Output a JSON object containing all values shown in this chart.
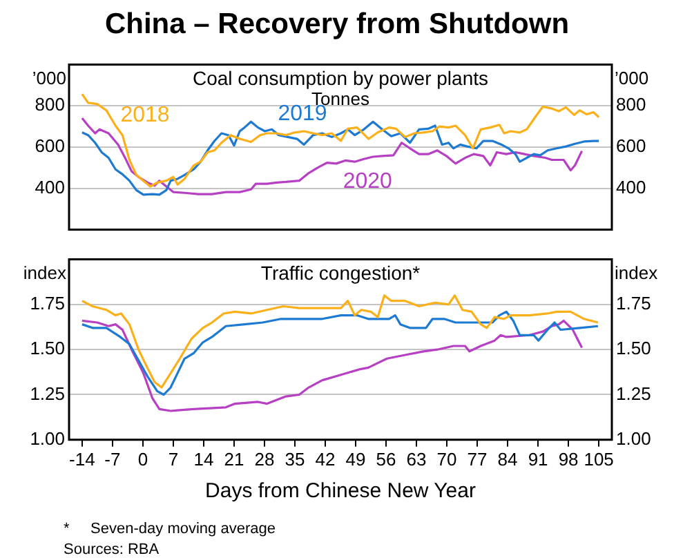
{
  "chart_data": [
    {
      "type": "other",
      "title": "China – Recovery from Shutdown"
    },
    {
      "type": "line",
      "title": "Coal consumption by power plants",
      "subtitle": "Tonnes",
      "ylabel": "’000",
      "y2label": "’000",
      "xlim": [
        -17,
        108
      ],
      "ylim": [
        200,
        1000
      ],
      "yticks": [
        400,
        600,
        800
      ],
      "y2lim": [
        200,
        1000
      ],
      "y2ticks": [
        400,
        600,
        800
      ],
      "grid": "y",
      "tick_labels": "y",
      "series": [
        {
          "name": "2018",
          "color": "#fbb01a",
          "x": [
            -14,
            -12.6,
            -10.5,
            -8.4,
            -6.3,
            -4.7,
            -3.1,
            -1.5,
            0.1,
            1.7,
            3.3,
            5.4,
            7,
            8,
            9.6,
            11.7,
            13.3,
            14.9,
            16.5,
            18.1,
            20.2,
            22.3,
            24.9,
            27,
            28.6,
            30.8,
            32.9,
            35,
            37.1,
            39.2,
            41.3,
            43.5,
            45.6,
            47.2,
            49.3,
            52,
            54.1,
            56.7,
            58.3,
            60.4,
            62.5,
            64.6,
            66.7,
            68.3,
            70.4,
            72,
            74.2,
            76,
            77.8,
            80,
            82.1,
            83.2,
            84.7,
            86.8,
            88.4,
            90.5,
            92.1,
            94.2,
            95.8,
            97.4,
            99.3,
            100.6,
            102.2,
            103.8,
            105
          ],
          "values": [
            857,
            815,
            809,
            778,
            704,
            658,
            538,
            465,
            437,
            409,
            428,
            437,
            455,
            418,
            446,
            511,
            529,
            575,
            584,
            621,
            658,
            640,
            625,
            658,
            667,
            667,
            658,
            671,
            677,
            667,
            658,
            667,
            630,
            689,
            695,
            640,
            671,
            695,
            689,
            649,
            667,
            671,
            677,
            700,
            695,
            704,
            658,
            594,
            686,
            695,
            708,
            667,
            677,
            671,
            686,
            750,
            796,
            787,
            774,
            793,
            756,
            778,
            759,
            769,
            745
          ]
        },
        {
          "name": "2019",
          "color": "#1c7ad2",
          "x": [
            -14,
            -12.6,
            -11,
            -9.5,
            -7.9,
            -6.3,
            -4.7,
            -3.1,
            -1.5,
            0.1,
            2.2,
            3.8,
            5.4,
            6.4,
            8,
            9.6,
            11.7,
            13.3,
            14.9,
            16.5,
            18.1,
            19.7,
            21,
            22.3,
            23.4,
            24.9,
            26.5,
            28.1,
            29.7,
            31.3,
            33.4,
            35.5,
            37.1,
            39.2,
            41.3,
            43.5,
            45.6,
            47.2,
            48.8,
            50.9,
            53,
            55.1,
            57.2,
            59.3,
            61.5,
            63.6,
            65.7,
            67.3,
            68.9,
            70.4,
            71.5,
            73.1,
            74.7,
            76.8,
            78.4,
            80.5,
            82.6,
            84.2,
            85.8,
            86.8,
            88.4,
            90,
            91.5,
            93.2,
            95.3,
            97.4,
            99.5,
            101.6,
            103.8,
            105
          ],
          "values": [
            671,
            658,
            621,
            575,
            548,
            492,
            468,
            437,
            391,
            369,
            372,
            369,
            391,
            437,
            446,
            465,
            492,
            529,
            584,
            630,
            667,
            658,
            608,
            677,
            695,
            723,
            695,
            677,
            686,
            658,
            649,
            640,
            612,
            658,
            667,
            649,
            667,
            686,
            658,
            686,
            723,
            686,
            653,
            667,
            621,
            686,
            689,
            704,
            612,
            621,
            594,
            612,
            603,
            594,
            630,
            630,
            612,
            594,
            566,
            529,
            548,
            566,
            560,
            584,
            594,
            603,
            616,
            627,
            630,
            630
          ]
        },
        {
          "name": "2020",
          "color": "#b63fc4",
          "x": [
            -14,
            -12.6,
            -11,
            -10,
            -7.9,
            -5.7,
            -4.1,
            -2.6,
            -1,
            1.1,
            2.7,
            3.8,
            5.4,
            7,
            9.6,
            12.8,
            15.9,
            19.1,
            22.3,
            24.9,
            26,
            28.6,
            30.8,
            32.9,
            36,
            38.2,
            40.3,
            42.4,
            44.5,
            46.6,
            48.8,
            50.9,
            53,
            55.1,
            57.7,
            59.6,
            61.5,
            63.6,
            65.7,
            67.8,
            69.9,
            72,
            74.2,
            76.2,
            78.4,
            80,
            81.5,
            83.7,
            85.8,
            87.9,
            90,
            92.7,
            94.2,
            96.9,
            98.5,
            99.5,
            101.1
          ],
          "values": [
            741,
            704,
            667,
            686,
            667,
            612,
            548,
            483,
            455,
            428,
            413,
            437,
            409,
            382,
            378,
            372,
            372,
            382,
            382,
            395,
            422,
            422,
            428,
            431,
            437,
            474,
            501,
            524,
            520,
            535,
            529,
            542,
            553,
            557,
            560,
            621,
            594,
            566,
            566,
            584,
            557,
            520,
            548,
            566,
            557,
            511,
            575,
            566,
            575,
            566,
            557,
            548,
            538,
            538,
            487,
            511,
            581
          ]
        }
      ]
    },
    {
      "type": "line",
      "title": "Traffic congestion*",
      "ylabel": "index",
      "y2label": "index",
      "xlabel": "Days from Chinese New Year",
      "xlim": [
        -17,
        108
      ],
      "xticks": [
        -14,
        -7,
        0,
        7,
        14,
        21,
        28,
        35,
        42,
        49,
        56,
        63,
        70,
        77,
        84,
        91,
        98,
        105
      ],
      "ylim": [
        1.0,
        2.0
      ],
      "yticks": [
        {
          "value": 1.0,
          "label": "1.00"
        },
        {
          "value": 1.25,
          "label": "1.25"
        },
        {
          "value": 1.5,
          "label": "1.50"
        },
        {
          "value": 1.75,
          "label": "1.75"
        }
      ],
      "y2lim": [
        1.0,
        2.0
      ],
      "y2ticks": [
        {
          "value": 1.0,
          "label": "1.00"
        },
        {
          "value": 1.25,
          "label": "1.25"
        },
        {
          "value": 1.5,
          "label": "1.50"
        },
        {
          "value": 1.75,
          "label": "1.75"
        }
      ],
      "grid": "y",
      "annotations": [
        "*     Seven-day moving average",
        "Sources: RBA"
      ],
      "series": [
        {
          "color": "#fbb01a",
          "x": [
            -14,
            -11.6,
            -8.4,
            -6.3,
            -5,
            -3.1,
            -1,
            0.6,
            2.7,
            4.3,
            5.9,
            8.5,
            11.2,
            13.8,
            15.9,
            18.6,
            21.2,
            24.9,
            28.6,
            32.3,
            36,
            41.3,
            45.6,
            47.2,
            48.8,
            50.3,
            52.5,
            54.1,
            55.6,
            57.2,
            60.4,
            63.6,
            67.3,
            70.4,
            71.8,
            73.6,
            75.7,
            77.8,
            79.2,
            81,
            83.1,
            84.7,
            89,
            93.2,
            95.3,
            98.5,
            101.6,
            104.8
          ],
          "values": [
            1.77,
            1.74,
            1.72,
            1.69,
            1.7,
            1.64,
            1.5,
            1.42,
            1.32,
            1.29,
            1.35,
            1.45,
            1.56,
            1.62,
            1.65,
            1.7,
            1.71,
            1.7,
            1.72,
            1.74,
            1.73,
            1.73,
            1.73,
            1.77,
            1.69,
            1.72,
            1.71,
            1.68,
            1.8,
            1.77,
            1.77,
            1.74,
            1.76,
            1.75,
            1.8,
            1.72,
            1.71,
            1.64,
            1.62,
            1.68,
            1.67,
            1.69,
            1.69,
            1.7,
            1.71,
            1.71,
            1.67,
            1.65
          ]
        },
        {
          "color": "#1c7ad2",
          "x": [
            -14,
            -11.6,
            -8.4,
            -5.2,
            -3.1,
            -1,
            1.1,
            3.3,
            4.8,
            6.4,
            8,
            9.6,
            11.7,
            13.8,
            15.9,
            19.1,
            23.4,
            27.6,
            31.8,
            37.1,
            41.3,
            45.6,
            49.3,
            51.9,
            56.7,
            58.1,
            59.3,
            61.5,
            63.6,
            65.2,
            66.7,
            69.4,
            72,
            77.3,
            80.5,
            82.1,
            83.7,
            85.3,
            86.8,
            90,
            91.1,
            93.2,
            94.8,
            96.2,
            100.6,
            104.8
          ],
          "values": [
            1.64,
            1.62,
            1.62,
            1.57,
            1.53,
            1.44,
            1.35,
            1.27,
            1.25,
            1.29,
            1.37,
            1.45,
            1.48,
            1.54,
            1.57,
            1.63,
            1.64,
            1.65,
            1.67,
            1.67,
            1.67,
            1.69,
            1.69,
            1.67,
            1.67,
            1.69,
            1.64,
            1.62,
            1.62,
            1.62,
            1.67,
            1.67,
            1.65,
            1.65,
            1.65,
            1.69,
            1.71,
            1.66,
            1.58,
            1.58,
            1.55,
            1.61,
            1.65,
            1.61,
            1.62,
            1.63
          ]
        },
        {
          "color": "#b63fc4",
          "x": [
            -14,
            -10.5,
            -7.9,
            -6.3,
            -4.7,
            -2.6,
            0.1,
            2.2,
            3.8,
            6.4,
            11.7,
            19.1,
            21.2,
            26.5,
            28.6,
            32.9,
            36,
            38.2,
            41.3,
            45.6,
            49.8,
            51.9,
            56.2,
            60.4,
            64.6,
            67.8,
            71.5,
            74.2,
            75.2,
            77.8,
            81,
            82.4,
            83.7,
            89,
            92.1,
            94.2,
            95.8,
            96.9,
            99,
            101.1
          ],
          "values": [
            1.66,
            1.65,
            1.63,
            1.64,
            1.61,
            1.5,
            1.37,
            1.23,
            1.17,
            1.16,
            1.17,
            1.18,
            1.2,
            1.21,
            1.2,
            1.24,
            1.25,
            1.29,
            1.33,
            1.36,
            1.39,
            1.4,
            1.45,
            1.47,
            1.49,
            1.5,
            1.52,
            1.52,
            1.49,
            1.52,
            1.55,
            1.58,
            1.57,
            1.58,
            1.6,
            1.63,
            1.64,
            1.66,
            1.61,
            1.51
          ]
        }
      ]
    }
  ]
}
